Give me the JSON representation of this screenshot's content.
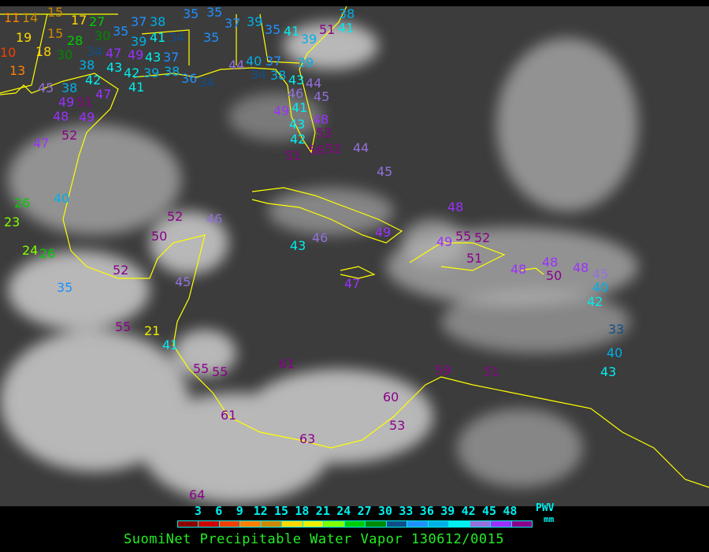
{
  "title": "SuomiNet Precipitable Water Vapor 130612/0015",
  "legend": {
    "unit_label": "PWV",
    "unit": "mm",
    "ticks": [
      "3",
      "6",
      "9",
      "12",
      "15",
      "18",
      "21",
      "24",
      "27",
      "30",
      "33",
      "36",
      "39",
      "42",
      "45",
      "48"
    ],
    "colors": [
      "#8b0000",
      "#cc0000",
      "#f04000",
      "#ff8000",
      "#cc8800",
      "#ffd700",
      "#eeee00",
      "#80ff00",
      "#00cc00",
      "#008800",
      "#104e8b",
      "#1e90ff",
      "#00b0e8",
      "#00eeee",
      "#9370db",
      "#9b30ff",
      "#8b008b"
    ]
  },
  "colors": {
    "coastline": "#ffff00",
    "background": "#000000",
    "title": "#22ee22"
  },
  "stations": [
    "11",
    "14",
    "19",
    "15",
    "17",
    "15",
    "10",
    "18",
    "13",
    "28",
    "27",
    "30",
    "35",
    "37",
    "38",
    "39",
    "41",
    "34",
    "30",
    "34",
    "47",
    "38",
    "42",
    "43",
    "42",
    "41",
    "39",
    "49",
    "43",
    "37",
    "38",
    "35",
    "35",
    "37",
    "39",
    "35",
    "35",
    "41",
    "39",
    "51",
    "38",
    "41",
    "44",
    "40",
    "34",
    "37",
    "39",
    "38",
    "43",
    "36",
    "34",
    "45",
    "38",
    "46",
    "44",
    "45",
    "41",
    "49",
    "49",
    "51",
    "47",
    "49",
    "48",
    "52",
    "47",
    "43",
    "48",
    "53",
    "42",
    "56",
    "52",
    "51",
    "44",
    "45",
    "40",
    "48",
    "26",
    "23",
    "52",
    "46",
    "50",
    "43",
    "46",
    "49",
    "55",
    "49",
    "52",
    "51",
    "48",
    "48",
    "50",
    "48",
    "45",
    "40",
    "42",
    "24",
    "26",
    "35",
    "52",
    "45",
    "47",
    "33",
    "40",
    "43",
    "55",
    "21",
    "41",
    "55",
    "55",
    "61",
    "59",
    "51",
    "60",
    "53",
    "61",
    "63",
    "64"
  ]
}
